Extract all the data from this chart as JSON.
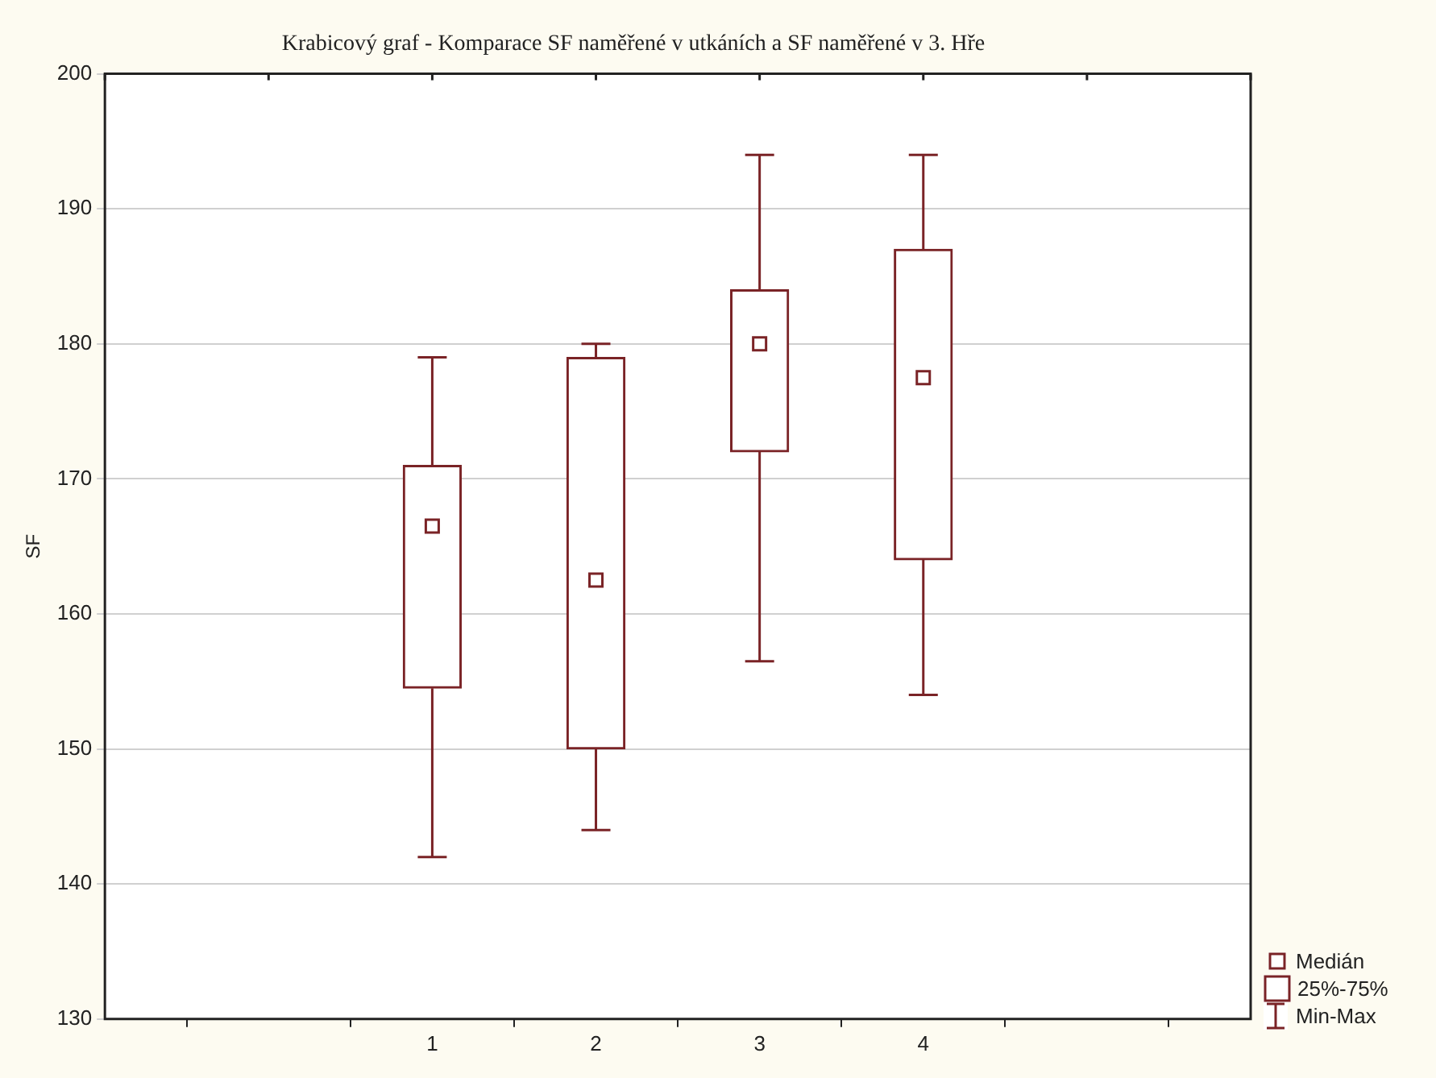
{
  "chart_data": {
    "type": "box",
    "title": "Krabicový graf - Komparace SF naměřené v utkáních a SF naměřené v 3. Hře",
    "ylabel": "SF",
    "categories": [
      null,
      null,
      "1",
      "2",
      "3",
      "4",
      null,
      null
    ],
    "color": "#7a2326",
    "boxes": [
      null,
      null,
      {
        "low": 142,
        "q1": 154.5,
        "median": 166.5,
        "q3": 171,
        "high": 179
      },
      {
        "low": 144,
        "q1": 150,
        "median": 162.5,
        "q3": 179,
        "high": 180
      },
      {
        "low": 156.5,
        "q1": 172,
        "median": 180,
        "q3": 184,
        "high": 194
      },
      {
        "low": 154,
        "q1": 164,
        "median": 177.5,
        "q3": 187,
        "high": 194
      },
      null,
      null
    ],
    "ylim": [
      130,
      200
    ],
    "yticks": [
      130,
      140,
      150,
      160,
      170,
      180,
      190,
      200
    ],
    "grid": "y",
    "marker": "square",
    "annotations": [
      "Medián",
      "25%-75%",
      "Min-Max"
    ]
  }
}
